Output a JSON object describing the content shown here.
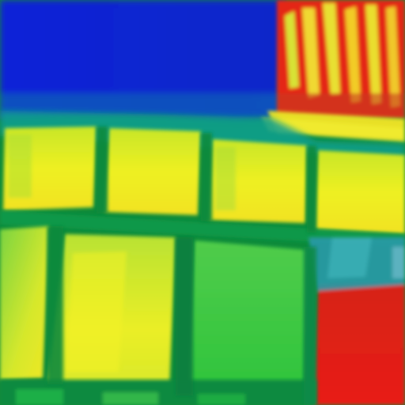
{
  "image": {
    "kind": "false-color thermal image",
    "palette": {
      "cold": "#0a1fd6",
      "cool": "#0fa0a0",
      "mid": "#1ec83a",
      "warm": "#e8f020",
      "hot": "#e02018"
    },
    "panel_rows": 2,
    "panel_count": 8
  }
}
